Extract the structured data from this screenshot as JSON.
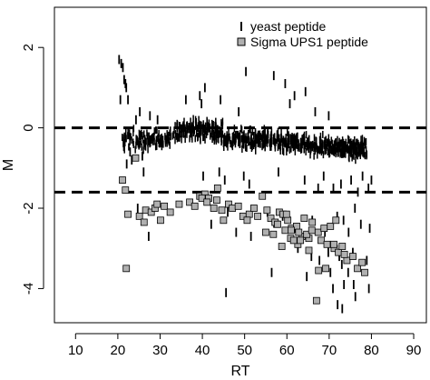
{
  "chart_data": {
    "type": "scatter",
    "xlabel": "RT",
    "ylabel": "M",
    "xlim": [
      5,
      93
    ],
    "ylim": [
      -4.85,
      3.0
    ],
    "x_ticks": [
      10,
      20,
      30,
      40,
      50,
      60,
      70,
      80,
      90
    ],
    "y_ticks": [
      -4,
      -2,
      0,
      2
    ],
    "reference_lines": [
      0,
      -1.6
    ],
    "legend": {
      "position": "top-right",
      "entries": [
        {
          "label": "yeast peptide",
          "marker": "vertical-tick"
        },
        {
          "label": "Sigma UPS1 peptide",
          "marker": "gray-square"
        }
      ]
    },
    "colors": {
      "ups1_fill": "#b0b0b0",
      "marker": "#000000"
    },
    "series": [
      {
        "name": "yeast peptide",
        "marker": "vertical-tick",
        "x": [
          20.3,
          20.8,
          21.2,
          21.5,
          21.8,
          22.0,
          20.6,
          22.4,
          24.3,
          25.2,
          27.6,
          29.4,
          36.1,
          39.4,
          39.8,
          40.6,
          44.3,
          48.6,
          50.3,
          56.9,
          59.6,
          60.7,
          61.8,
          64.4,
          66.7,
          69.9,
          22.1,
          22.9,
          23.3,
          25.8,
          26.1,
          40.2,
          44.0,
          45.3,
          49.8,
          51.1,
          58.0,
          64.2,
          67.4,
          68.7,
          71.0,
          72.8,
          75.2,
          76.8,
          77.9,
          79.3,
          80.0,
          24.7,
          27.3,
          42.1,
          46.0,
          48.0,
          55.4,
          59.0,
          62.0,
          66.0,
          69.0,
          71.9,
          73.4,
          76.1,
          77.5,
          79.6,
          51.5,
          74.6,
          69.8,
          72.4,
          62.6,
          67.7,
          70.3,
          73.0,
          75.6,
          73.5,
          74.5,
          76.2,
          78.9,
          65.8,
          70.9,
          72.0,
          45.6,
          56.4,
          64.7,
          73.1,
          75.8,
          79.4
        ],
        "y": [
          1.7,
          1.6,
          1.5,
          1.2,
          1.1,
          1.0,
          0.7,
          0.7,
          0.2,
          0.4,
          0.3,
          0.2,
          0.7,
          0.8,
          0.6,
          1.0,
          0.7,
          0.4,
          1.4,
          1.3,
          1.1,
          0.6,
          0.8,
          0.9,
          0.4,
          0.3,
          -0.9,
          -0.6,
          -0.8,
          -0.7,
          -1.1,
          -1.2,
          -1.1,
          -1.3,
          -1.2,
          -1.4,
          -1.1,
          -1.3,
          -1.5,
          -1.2,
          -1.5,
          -1.4,
          -1.3,
          -1.6,
          -1.2,
          -1.5,
          -1.3,
          -2.0,
          -2.7,
          -2.4,
          -2.1,
          -2.6,
          -2.1,
          -2.2,
          -2.5,
          -2.3,
          -2.6,
          -2.2,
          -2.3,
          -2.0,
          -2.4,
          -2.5,
          -2.7,
          -2.6,
          -3.1,
          -3.2,
          -3.0,
          -3.3,
          -3.6,
          -3.4,
          -3.1,
          -3.9,
          -3.6,
          -4.2,
          -3.3,
          -3.2,
          -4.0,
          -4.4,
          -4.1,
          -3.6,
          -3.7,
          -4.5,
          -3.9,
          -4.0
        ]
      },
      {
        "name": "Sigma UPS1 peptide",
        "marker": "gray-square",
        "x": [
          21.1,
          22.4,
          21.8,
          24.2,
          25.1,
          26.6,
          27.9,
          28.8,
          26.2,
          29.3,
          31.0,
          32.4,
          30.1,
          34.5,
          37.0,
          38.2,
          39.4,
          40.6,
          41.5,
          39.9,
          41.1,
          42.7,
          43.4,
          44.6,
          46.2,
          47.1,
          45.0,
          48.5,
          49.6,
          51.1,
          52.2,
          53.1,
          50.6,
          55.0,
          56.2,
          57.6,
          58.2,
          59.6,
          60.2,
          61.1,
          62.3,
          63.6,
          64.1,
          65.2,
          66.0,
          67.4,
          68.1,
          68.8,
          69.5,
          70.3,
          71.2,
          72.2,
          73.1,
          74.2,
          73.6,
          75.6,
          76.7,
          77.8,
          78.4,
          55.3,
          57.2,
          59.1,
          61.0,
          62.6,
          64.7,
          63.2,
          56.8,
          58.8,
          60.9,
          62.8,
          65.9,
          67.5,
          69.2,
          71.6,
          59.9,
          57.8,
          61.6,
          71.1,
          65.2,
          43.6,
          54.2,
          22.0,
          67.0
        ],
        "y": [
          -1.3,
          -2.15,
          -1.55,
          -0.75,
          -2.2,
          -2.05,
          -2.1,
          -2.0,
          -2.35,
          -1.9,
          -1.95,
          -2.1,
          -2.3,
          -1.9,
          -1.85,
          -1.95,
          -1.7,
          -1.65,
          -1.75,
          -1.75,
          -1.85,
          -2.0,
          -1.8,
          -2.05,
          -1.9,
          -2.0,
          -2.3,
          -1.95,
          -2.2,
          -2.15,
          -2.0,
          -2.2,
          -2.3,
          -2.6,
          -2.25,
          -2.4,
          -2.1,
          -2.55,
          -2.3,
          -2.5,
          -2.45,
          -2.7,
          -2.25,
          -2.75,
          -2.35,
          -2.6,
          -2.8,
          -2.5,
          -2.9,
          -2.45,
          -3.0,
          -3.1,
          -2.95,
          -3.3,
          -3.15,
          -3.2,
          -3.5,
          -3.35,
          -3.6,
          -2.05,
          -2.35,
          -2.15,
          -2.55,
          -2.9,
          -2.65,
          -2.8,
          -2.65,
          -2.95,
          -2.75,
          -2.6,
          -2.55,
          -3.55,
          -3.5,
          -2.3,
          -2.15,
          -2.4,
          -2.8,
          -2.9,
          -3.05,
          -1.5,
          -1.7,
          -3.5,
          -4.3
        ]
      }
    ]
  }
}
